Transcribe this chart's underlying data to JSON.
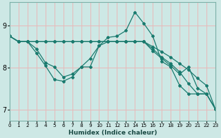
{
  "xlabel": "Humidex (Indice chaleur)",
  "bg_color": "#cde8e5",
  "grid_color": "#e8b8b8",
  "line_color": "#1a7a6e",
  "xlim": [
    0,
    23
  ],
  "ylim": [
    6.75,
    9.55
  ],
  "yticks": [
    7,
    8,
    9
  ],
  "xticks": [
    0,
    1,
    2,
    3,
    4,
    5,
    6,
    7,
    8,
    9,
    10,
    11,
    12,
    13,
    14,
    15,
    16,
    17,
    18,
    19,
    20,
    21,
    22,
    23
  ],
  "line1_x": [
    0,
    1,
    2,
    3,
    4,
    5,
    6,
    7,
    8,
    9,
    10,
    11,
    12,
    13,
    14,
    15,
    16,
    17,
    18,
    19,
    20,
    21,
    22,
    23
  ],
  "line1_y": [
    8.75,
    8.62,
    8.62,
    8.62,
    8.62,
    8.62,
    8.62,
    8.62,
    8.62,
    8.62,
    8.62,
    8.62,
    8.62,
    8.62,
    8.62,
    8.62,
    8.5,
    8.38,
    8.25,
    8.1,
    7.95,
    7.75,
    7.58,
    7.02
  ],
  "line2_x": [
    0,
    1,
    2,
    3,
    4,
    5,
    6,
    7,
    8,
    9,
    10,
    11,
    12,
    13,
    14,
    15,
    16,
    17,
    18,
    19,
    20,
    21,
    22,
    23
  ],
  "line2_y": [
    8.75,
    8.62,
    8.62,
    8.45,
    8.12,
    8.02,
    7.78,
    7.85,
    8.02,
    8.22,
    8.52,
    8.62,
    8.62,
    8.62,
    8.62,
    8.62,
    8.4,
    8.22,
    8.05,
    7.85,
    8.02,
    7.52,
    7.38,
    7.02
  ],
  "line3_x": [
    0,
    1,
    2,
    3,
    4,
    5,
    6,
    7,
    8,
    9,
    10,
    11,
    12,
    13,
    14,
    15,
    16,
    17,
    18,
    19,
    20,
    21,
    22,
    23
  ],
  "line3_y": [
    8.75,
    8.62,
    8.62,
    8.35,
    8.05,
    7.72,
    7.68,
    7.78,
    8.02,
    8.02,
    8.52,
    8.72,
    8.75,
    8.88,
    9.32,
    9.05,
    8.75,
    8.15,
    8.02,
    7.58,
    7.38,
    7.38,
    7.38,
    7.02
  ],
  "line4_x": [
    0,
    1,
    2,
    3,
    4,
    5,
    6,
    7,
    8,
    9,
    10,
    11,
    12,
    13,
    14,
    15,
    16,
    17,
    18,
    19,
    20,
    21,
    22,
    23
  ],
  "line4_y": [
    8.75,
    8.62,
    8.62,
    8.62,
    8.62,
    8.62,
    8.62,
    8.62,
    8.62,
    8.62,
    8.62,
    8.62,
    8.62,
    8.62,
    8.62,
    8.62,
    8.45,
    8.25,
    8.1,
    7.9,
    7.62,
    7.38,
    7.38,
    7.02
  ]
}
